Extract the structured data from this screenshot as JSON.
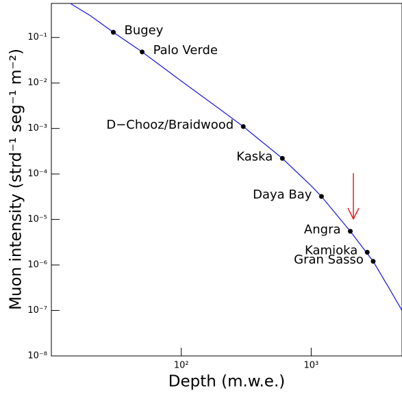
{
  "chart_data": {
    "type": "scatter",
    "xlabel": "Depth (m.w.e.)",
    "ylabel": "Muon intensity (strd⁻¹ seg⁻¹ m⁻²)",
    "xlog": true,
    "ylog": true,
    "xlim": [
      10,
      5000
    ],
    "ylim": [
      1e-08,
      0.56
    ],
    "xticks": [
      {
        "value": 100,
        "label": "10²"
      },
      {
        "value": 1000,
        "label": "10³"
      }
    ],
    "yticks": [
      {
        "value": 1e-08,
        "label": "10⁻⁸"
      },
      {
        "value": 1e-07,
        "label": "10⁻⁷"
      },
      {
        "value": 1e-06,
        "label": "10⁻⁶"
      },
      {
        "value": 1e-05,
        "label": "10⁻⁵"
      },
      {
        "value": 0.0001,
        "label": "10⁻⁴"
      },
      {
        "value": 0.001,
        "label": "10⁻³"
      },
      {
        "value": 0.01,
        "label": "10⁻²"
      },
      {
        "value": 0.1,
        "label": "10⁻¹"
      }
    ],
    "curve": {
      "color": "#1f1fe0",
      "x": [
        14,
        20,
        30,
        50,
        100,
        200,
        300,
        600,
        1000,
        1200,
        2000,
        3000,
        4000,
        5000
      ],
      "y": [
        0.56,
        0.3,
        0.13,
        0.048,
        0.011,
        0.0026,
        0.0011,
        0.00022,
        5.5e-05,
        3.2e-05,
        5.5e-06,
        1.2e-06,
        3e-07,
        1e-07
      ]
    },
    "points": {
      "color": "#000000",
      "labels": [
        "Bugey",
        "Palo Verde",
        "D−Chooz/Braidwood",
        "Kaska",
        "Daya Bay",
        "Angra",
        "Kamioka",
        "Gran Sasso"
      ],
      "x": [
        30,
        50,
        300,
        600,
        1200,
        2000,
        2700,
        3000
      ],
      "y": [
        0.13,
        0.048,
        0.0011,
        0.00022,
        3.2e-05,
        5.5e-06,
        1.9e-06,
        1.2e-06
      ]
    }
  }
}
